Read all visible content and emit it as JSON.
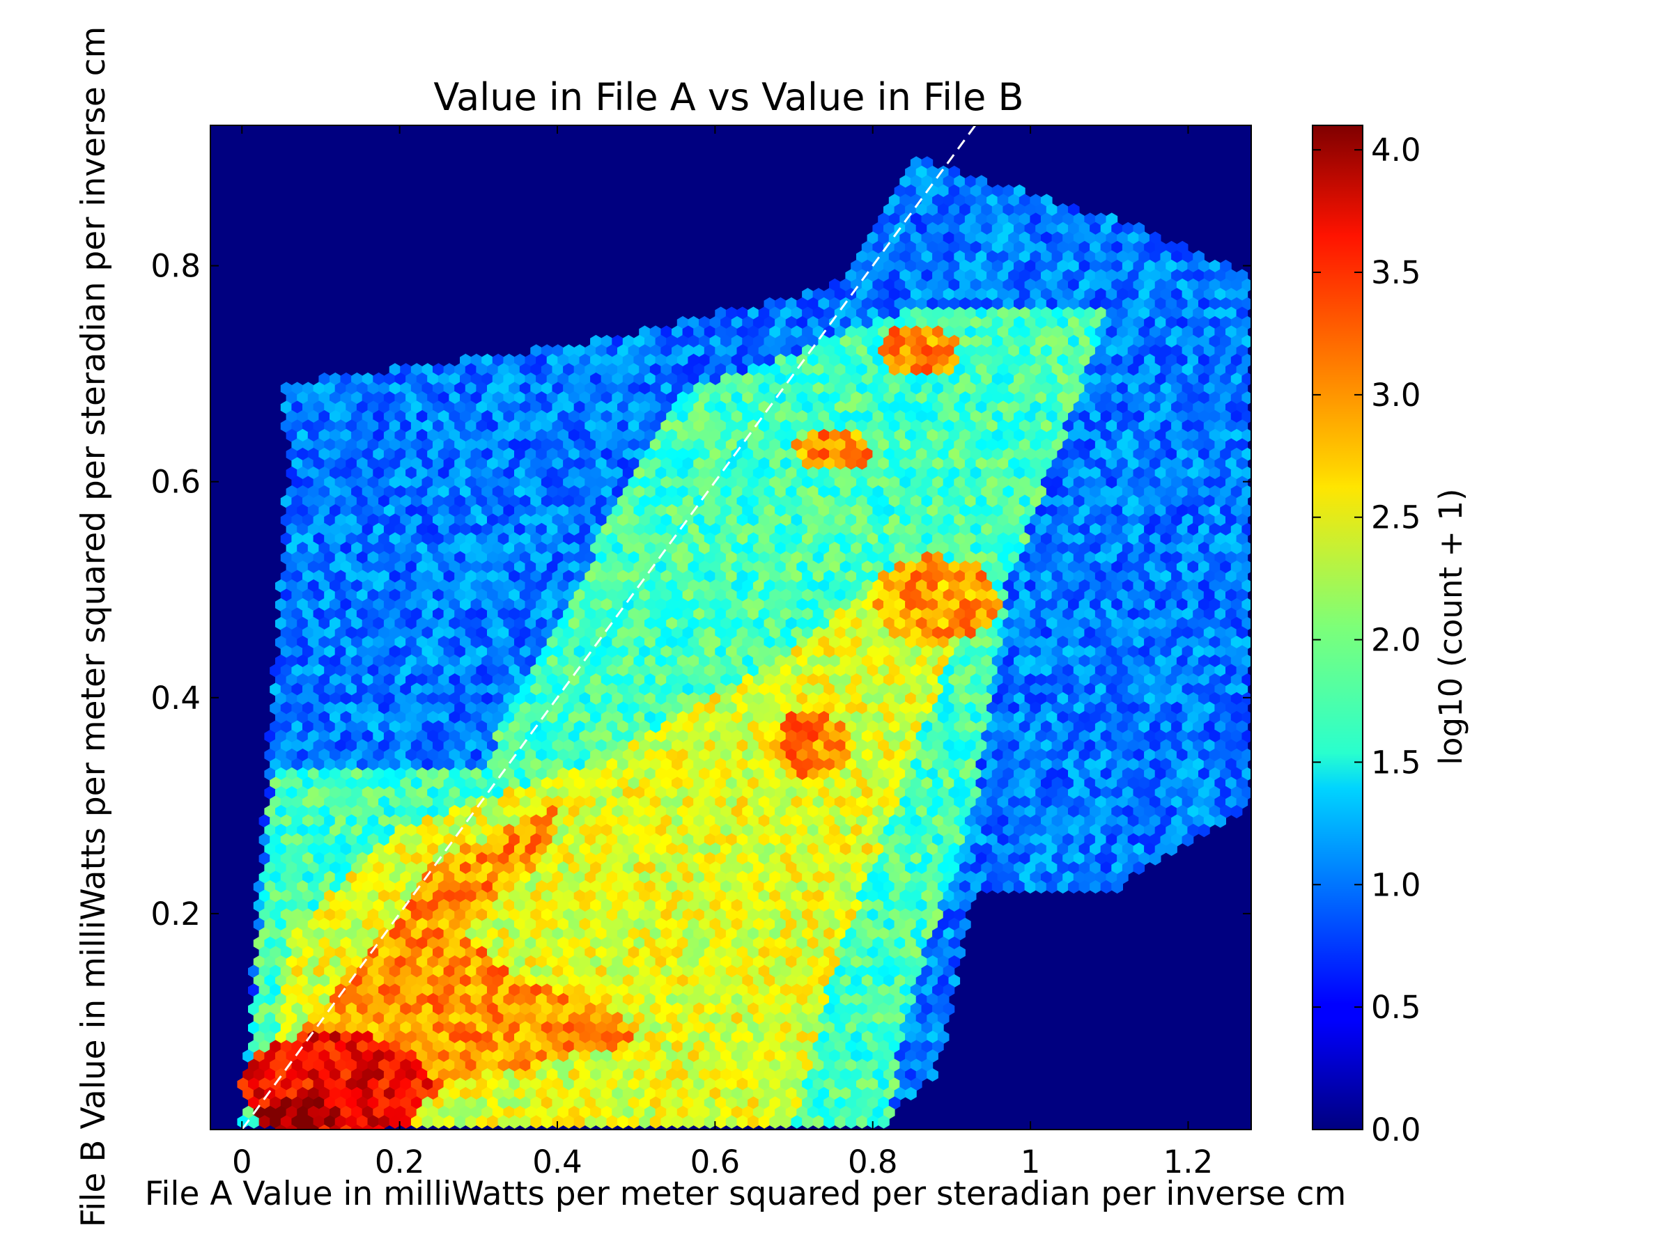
{
  "chart_data": {
    "type": "hexbin",
    "title": "Value in File A vs Value in File B",
    "xlabel": "File A Value in milliWatts per meter squared per steradian per inverse cm",
    "ylabel": "File B Value in milliWatts per meter squared per steradian per inverse cm",
    "xlim": [
      -0.04,
      1.28
    ],
    "ylim": [
      0.0,
      0.93
    ],
    "x_ticks": [
      0,
      0.2,
      0.4,
      0.6,
      0.8,
      1,
      1.2
    ],
    "x_tick_labels": [
      "0",
      "0.2",
      "0.4",
      "0.6",
      "0.8",
      "1",
      "1.2"
    ],
    "y_ticks": [
      0.2,
      0.4,
      0.6,
      0.8
    ],
    "y_tick_labels": [
      "0.2",
      "0.4",
      "0.6",
      "0.8"
    ],
    "colorbar": {
      "label": "log10 (count + 1)",
      "range": [
        0.0,
        4.1
      ],
      "ticks": [
        0.0,
        0.5,
        1.0,
        1.5,
        2.0,
        2.5,
        3.0,
        3.5,
        4.0
      ],
      "tick_labels": [
        "0.0",
        "0.5",
        "1.0",
        "1.5",
        "2.0",
        "2.5",
        "3.0",
        "3.5",
        "4.0"
      ],
      "colormap": "jet"
    },
    "reference_line": {
      "style": "dashed",
      "color": "#ffffff",
      "points": [
        [
          -0.04,
          -0.04
        ],
        [
          0.93,
          0.93
        ]
      ]
    },
    "density_regions": [
      {
        "description": "empty background",
        "x": [
          -0.04,
          1.28
        ],
        "y": [
          0.0,
          0.93
        ],
        "value": 0.0
      },
      {
        "description": "sparse cloud upper left",
        "polygon": [
          [
            0.0,
            0.0
          ],
          [
            0.06,
            0.62
          ],
          [
            0.05,
            0.69
          ],
          [
            0.45,
            0.73
          ],
          [
            0.75,
            0.78
          ],
          [
            0.85,
            0.9
          ],
          [
            1.12,
            0.84
          ],
          [
            1.28,
            0.79
          ],
          [
            1.28,
            0.3
          ],
          [
            1.1,
            0.22
          ],
          [
            0.93,
            0.22
          ],
          [
            0.88,
            0.05
          ],
          [
            0.8,
            0.0
          ]
        ],
        "value": 1.0
      },
      {
        "description": "main band",
        "polygon": [
          [
            0.0,
            0.0
          ],
          [
            0.04,
            0.33
          ],
          [
            0.3,
            0.33
          ],
          [
            0.55,
            0.68
          ],
          [
            0.7,
            0.72
          ],
          [
            0.85,
            0.76
          ],
          [
            1.1,
            0.76
          ],
          [
            0.97,
            0.5
          ],
          [
            0.93,
            0.3
          ],
          [
            0.84,
            0.1
          ],
          [
            0.82,
            0.0
          ]
        ],
        "value": 1.8
      },
      {
        "description": "core band",
        "polygon": [
          [
            0.03,
            0.0
          ],
          [
            0.06,
            0.18
          ],
          [
            0.2,
            0.28
          ],
          [
            0.45,
            0.34
          ],
          [
            0.65,
            0.42
          ],
          [
            0.8,
            0.5
          ],
          [
            0.95,
            0.52
          ],
          [
            0.88,
            0.4
          ],
          [
            0.82,
            0.28
          ],
          [
            0.75,
            0.15
          ],
          [
            0.7,
            0.0
          ]
        ],
        "value": 2.45
      },
      {
        "description": "hot diagonal ridge",
        "polygon": [
          [
            0.03,
            0.0
          ],
          [
            0.07,
            0.09
          ],
          [
            0.2,
            0.2
          ],
          [
            0.25,
            0.25
          ],
          [
            0.4,
            0.3
          ],
          [
            0.38,
            0.25
          ],
          [
            0.28,
            0.18
          ],
          [
            0.35,
            0.14
          ],
          [
            0.5,
            0.1
          ],
          [
            0.5,
            0.08
          ],
          [
            0.3,
            0.05
          ],
          [
            0.15,
            0.0
          ]
        ],
        "value": 3.0
      },
      {
        "description": "hot spot near (0.72, 0.35)",
        "center": [
          0.72,
          0.355
        ],
        "radius": [
          0.05,
          0.03
        ],
        "value": 3.05
      },
      {
        "description": "hot spot near (0.88, 0.49)",
        "center": [
          0.88,
          0.49
        ],
        "radius": [
          0.08,
          0.04
        ],
        "value": 2.95
      },
      {
        "description": "hot spot near (0.75, 0.63)",
        "center": [
          0.75,
          0.63
        ],
        "radius": [
          0.05,
          0.02
        ],
        "value": 3.0
      },
      {
        "description": "hot spot near (0.86, 0.72)",
        "center": [
          0.86,
          0.72
        ],
        "radius": [
          0.05,
          0.025
        ],
        "value": 3.05
      },
      {
        "description": "hot core near origin",
        "center": [
          0.12,
          0.04
        ],
        "radius": [
          0.12,
          0.05
        ],
        "value": 3.6
      },
      {
        "description": "peak near (0.07, 0.01)",
        "center": [
          0.07,
          0.012
        ],
        "radius": [
          0.05,
          0.018
        ],
        "value": 4.05
      }
    ]
  }
}
